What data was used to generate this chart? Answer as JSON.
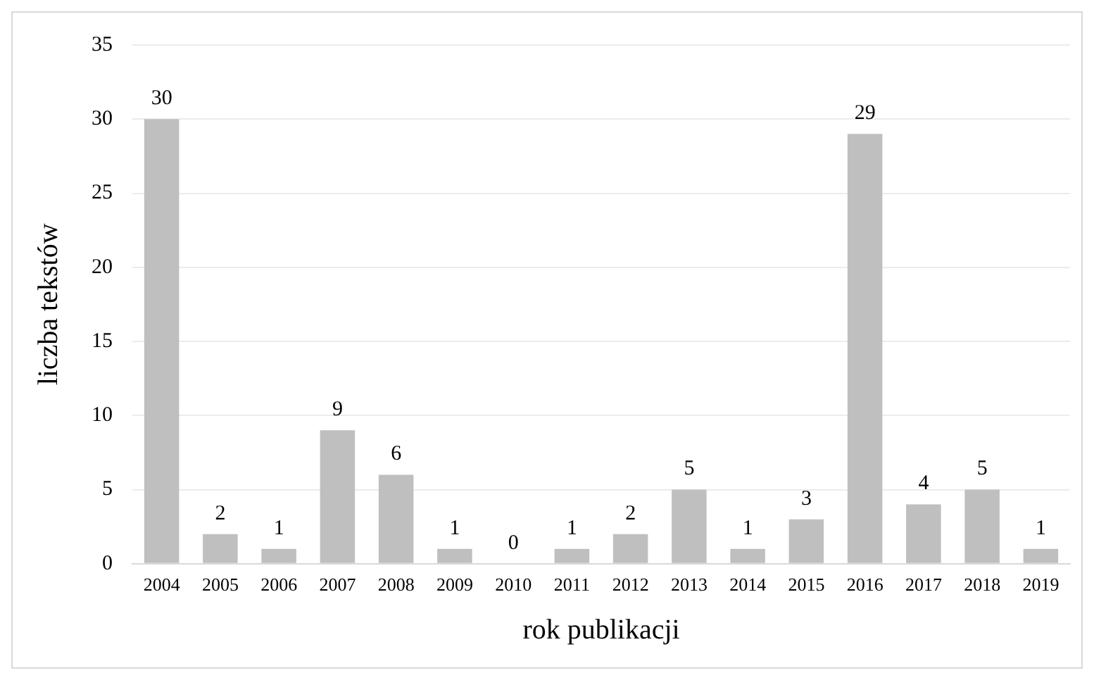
{
  "chart_data": {
    "type": "bar",
    "xlabel": "rok publikacji",
    "ylabel": "liczba tekstów",
    "categories": [
      "2004",
      "2005",
      "2006",
      "2007",
      "2008",
      "2009",
      "2010",
      "2011",
      "2012",
      "2013",
      "2014",
      "2015",
      "2016",
      "2017",
      "2018",
      "2019"
    ],
    "values": [
      30,
      2,
      1,
      9,
      6,
      1,
      0,
      1,
      2,
      5,
      1,
      3,
      29,
      4,
      5,
      1
    ],
    "color": "#bfbfbf",
    "ylim": [
      0,
      35
    ],
    "yticks": [
      0,
      5,
      10,
      15,
      20,
      25,
      30,
      35
    ],
    "grid": "y",
    "data_labels": true,
    "legend": false
  }
}
